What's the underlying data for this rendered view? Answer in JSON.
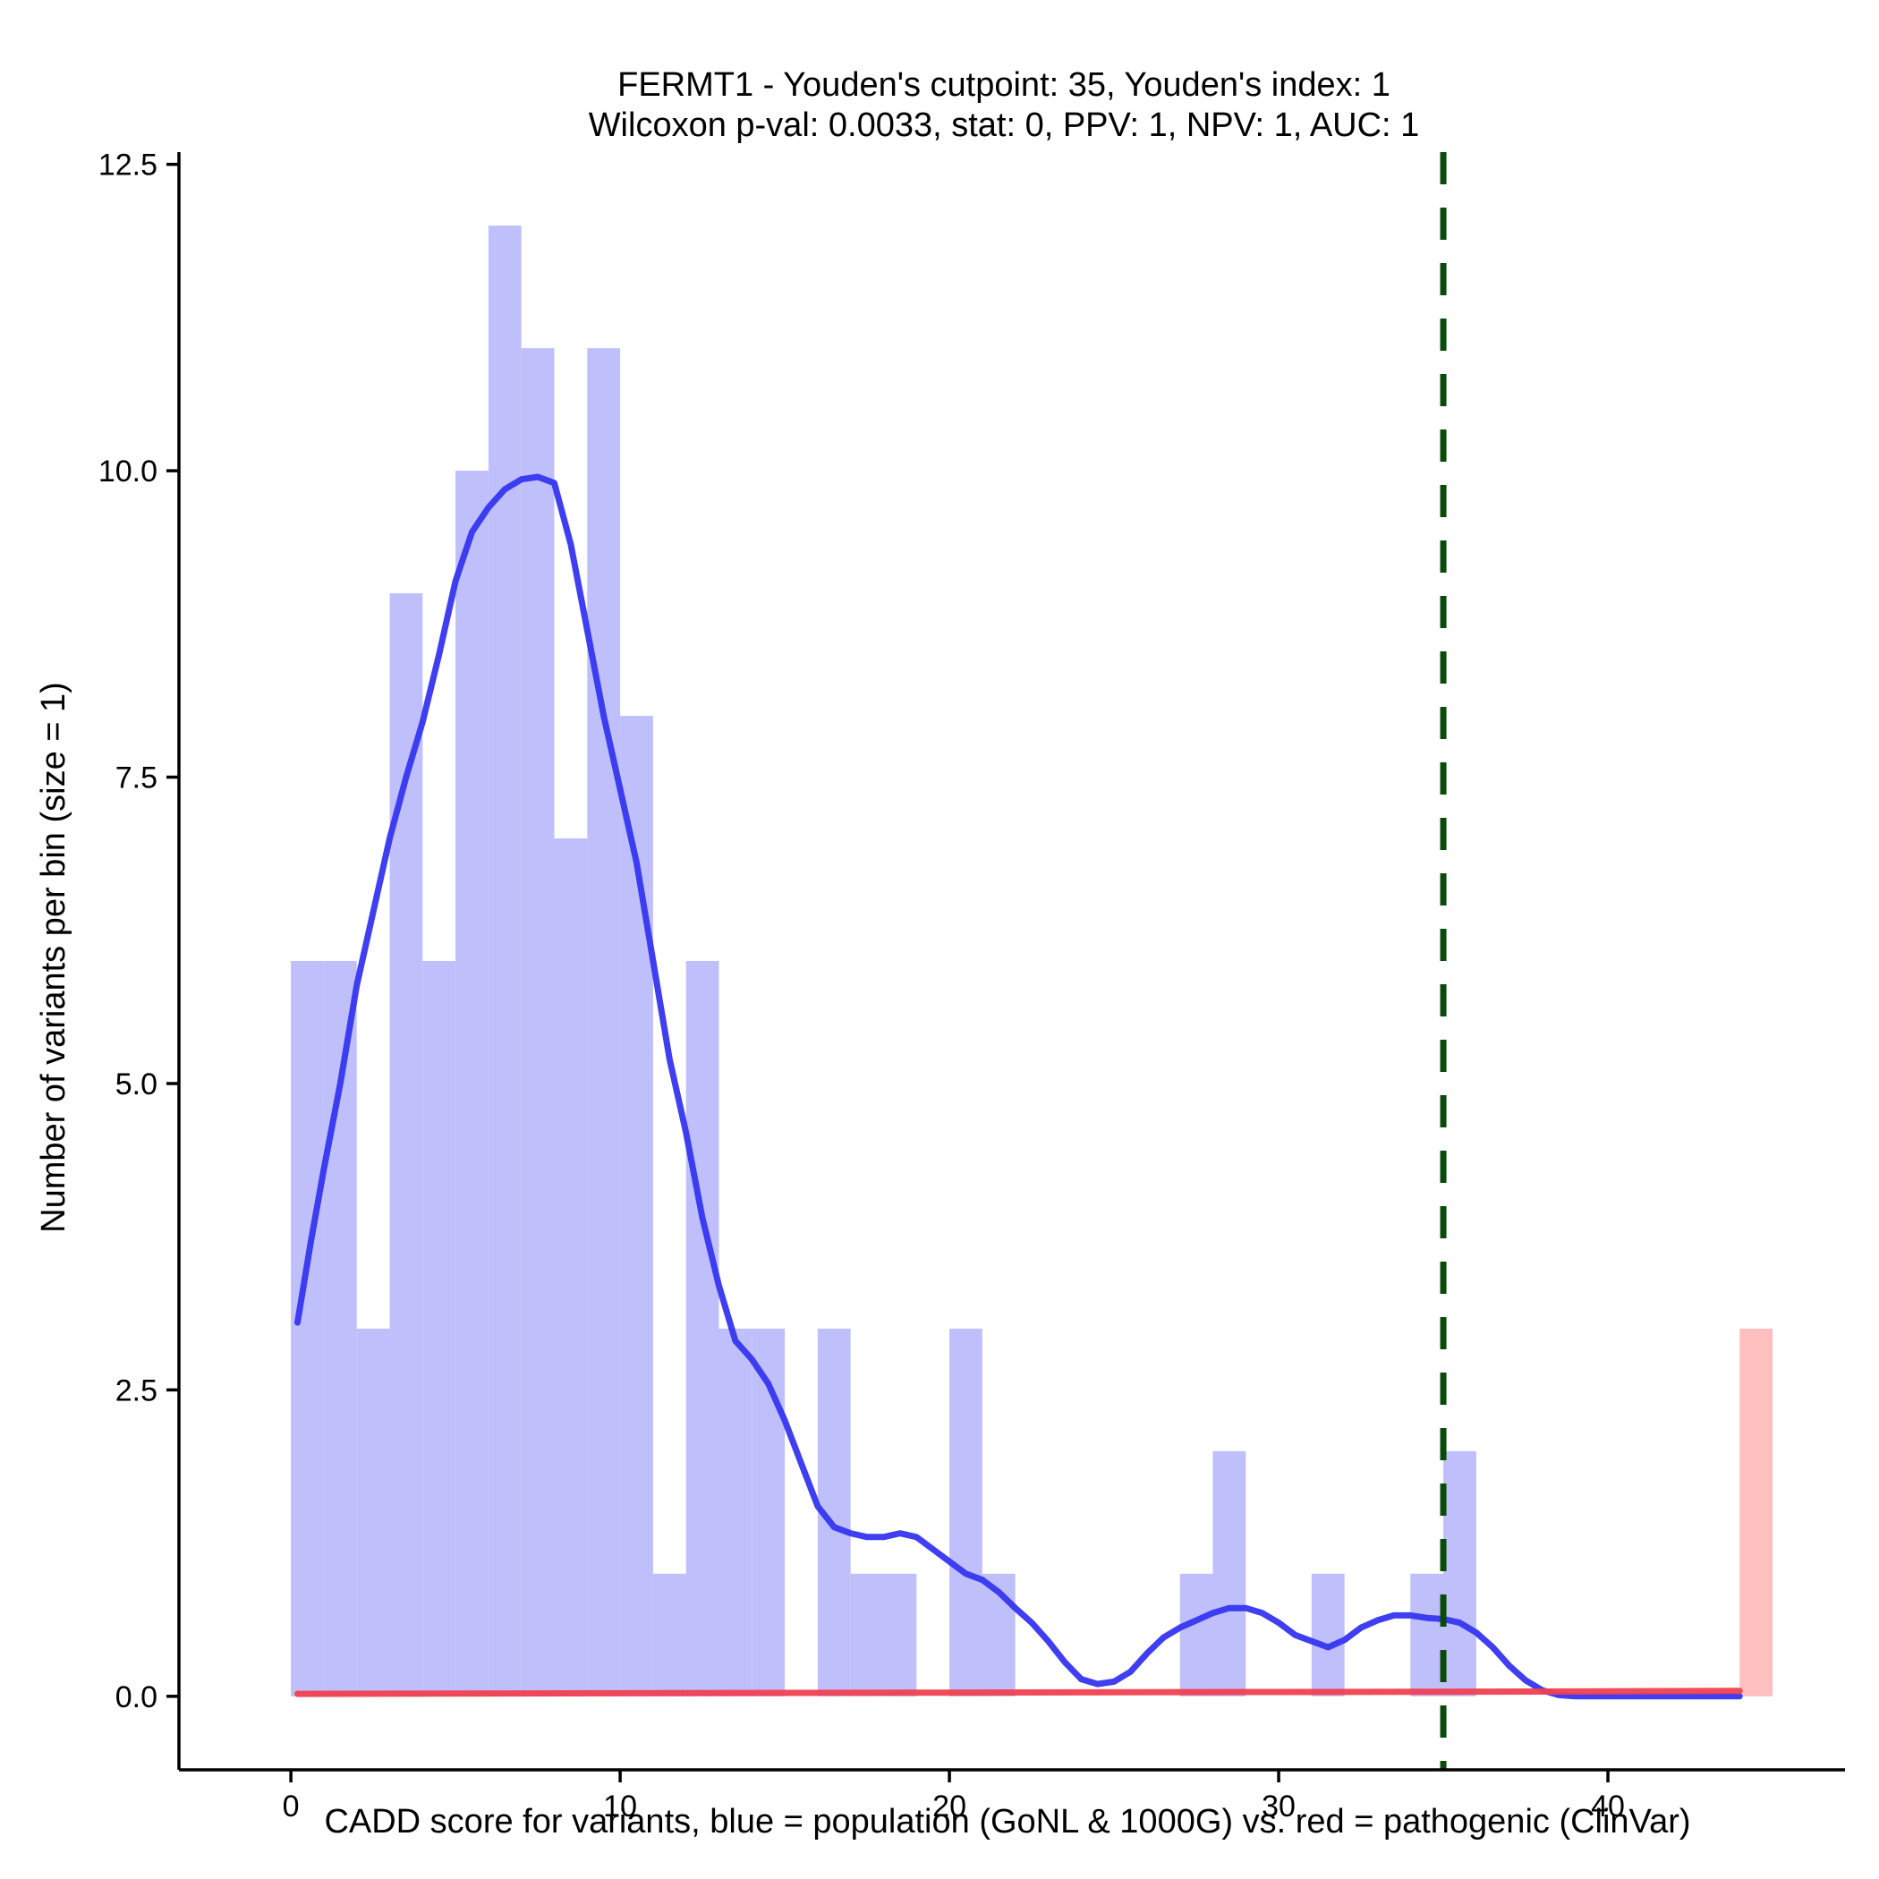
{
  "chart_data": {
    "type": "bar",
    "title_line1": "FERMT1 - Youden's cutpoint: 35, Youden's index: 1",
    "title_line2": "Wilcoxon p-val: 0.0033, stat: 0, PPV: 1, NPV: 1, AUC: 1",
    "xlabel": "CADD score for variants, blue = population (GoNL & 1000G) vs. red = pathogenic (ClinVar)",
    "ylabel": "Number of variants per bin (size = 1)",
    "xlim": [
      -3.4,
      47.2
    ],
    "ylim": [
      -0.6,
      12.6
    ],
    "x_ticks": [
      0,
      10,
      20,
      30,
      40
    ],
    "x_tick_labels": [
      "0",
      "10",
      "20",
      "30",
      "40"
    ],
    "y_ticks": [
      0,
      2.5,
      5,
      7.5,
      10,
      12.5
    ],
    "y_tick_labels": [
      "0.0",
      "2.5",
      "5.0",
      "7.5",
      "10.0",
      "12.5"
    ],
    "bin_width": 1,
    "colors": {
      "population_bar": "#bfbffc",
      "pathogenic_bar": "#ffbfbf",
      "population_density": "#3535f0",
      "pathogenic_density": "#f04050",
      "cutpoint_line": "#0a4a0a"
    },
    "series": [
      {
        "name": "population",
        "bins": [
          {
            "x0": 0,
            "count": 6
          },
          {
            "x0": 1,
            "count": 6
          },
          {
            "x0": 2,
            "count": 3
          },
          {
            "x0": 3,
            "count": 9
          },
          {
            "x0": 4,
            "count": 6
          },
          {
            "x0": 5,
            "count": 10
          },
          {
            "x0": 6,
            "count": 12
          },
          {
            "x0": 7,
            "count": 11
          },
          {
            "x0": 8,
            "count": 7
          },
          {
            "x0": 9,
            "count": 11
          },
          {
            "x0": 10,
            "count": 8
          },
          {
            "x0": 11,
            "count": 1
          },
          {
            "x0": 12,
            "count": 6
          },
          {
            "x0": 13,
            "count": 3
          },
          {
            "x0": 14,
            "count": 3
          },
          {
            "x0": 16,
            "count": 3
          },
          {
            "x0": 17,
            "count": 1
          },
          {
            "x0": 18,
            "count": 1
          },
          {
            "x0": 20,
            "count": 3
          },
          {
            "x0": 21,
            "count": 1
          },
          {
            "x0": 27,
            "count": 1
          },
          {
            "x0": 28,
            "count": 2
          },
          {
            "x0": 31,
            "count": 1
          },
          {
            "x0": 34,
            "count": 1
          },
          {
            "x0": 35,
            "count": 2
          }
        ],
        "density_curve": [
          [
            0.2,
            3.05
          ],
          [
            0.6,
            3.7
          ],
          [
            1.0,
            4.3
          ],
          [
            1.5,
            5.0
          ],
          [
            2.0,
            5.8
          ],
          [
            2.5,
            6.4
          ],
          [
            3.0,
            7.0
          ],
          [
            3.5,
            7.5
          ],
          [
            4.0,
            7.95
          ],
          [
            4.5,
            8.5
          ],
          [
            5.0,
            9.1
          ],
          [
            5.5,
            9.5
          ],
          [
            6.0,
            9.7
          ],
          [
            6.5,
            9.85
          ],
          [
            7.0,
            9.93
          ],
          [
            7.5,
            9.95
          ],
          [
            8.0,
            9.9
          ],
          [
            8.5,
            9.4
          ],
          [
            9.0,
            8.7
          ],
          [
            9.5,
            8.0
          ],
          [
            10.0,
            7.4
          ],
          [
            10.5,
            6.8
          ],
          [
            11.0,
            6.0
          ],
          [
            11.5,
            5.2
          ],
          [
            12.0,
            4.6
          ],
          [
            12.5,
            3.9
          ],
          [
            13.0,
            3.35
          ],
          [
            13.5,
            2.9
          ],
          [
            14.0,
            2.75
          ],
          [
            14.5,
            2.55
          ],
          [
            15.0,
            2.25
          ],
          [
            15.5,
            1.9
          ],
          [
            16.0,
            1.55
          ],
          [
            16.5,
            1.38
          ],
          [
            17.0,
            1.33
          ],
          [
            17.5,
            1.3
          ],
          [
            18.0,
            1.3
          ],
          [
            18.5,
            1.33
          ],
          [
            19.0,
            1.3
          ],
          [
            19.5,
            1.2
          ],
          [
            20.0,
            1.1
          ],
          [
            20.5,
            1.0
          ],
          [
            21.0,
            0.95
          ],
          [
            21.5,
            0.85
          ],
          [
            22.0,
            0.72
          ],
          [
            22.5,
            0.6
          ],
          [
            23.0,
            0.45
          ],
          [
            23.5,
            0.28
          ],
          [
            24.0,
            0.14
          ],
          [
            24.5,
            0.1
          ],
          [
            25.0,
            0.12
          ],
          [
            25.5,
            0.2
          ],
          [
            26.0,
            0.35
          ],
          [
            26.5,
            0.48
          ],
          [
            27.0,
            0.56
          ],
          [
            27.5,
            0.62
          ],
          [
            28.0,
            0.68
          ],
          [
            28.5,
            0.72
          ],
          [
            29.0,
            0.72
          ],
          [
            29.5,
            0.68
          ],
          [
            30.0,
            0.6
          ],
          [
            30.5,
            0.5
          ],
          [
            31.0,
            0.45
          ],
          [
            31.5,
            0.4
          ],
          [
            32.0,
            0.46
          ],
          [
            32.5,
            0.56
          ],
          [
            33.0,
            0.62
          ],
          [
            33.5,
            0.66
          ],
          [
            34.0,
            0.66
          ],
          [
            34.5,
            0.64
          ],
          [
            35.0,
            0.63
          ],
          [
            35.5,
            0.6
          ],
          [
            36.0,
            0.52
          ],
          [
            36.5,
            0.4
          ],
          [
            37.0,
            0.25
          ],
          [
            37.5,
            0.13
          ],
          [
            38.0,
            0.05
          ],
          [
            38.5,
            0.01
          ],
          [
            39.0,
            0.0
          ],
          [
            40.0,
            0.0
          ],
          [
            42.0,
            0.0
          ],
          [
            44.0,
            0.0
          ]
        ]
      },
      {
        "name": "pathogenic",
        "bins": [
          {
            "x0": 44,
            "count": 3
          }
        ],
        "density_curve": [
          [
            0.2,
            0.02
          ],
          [
            10.0,
            0.025
          ],
          [
            20.0,
            0.03
          ],
          [
            30.0,
            0.035
          ],
          [
            40.0,
            0.04
          ],
          [
            44.0,
            0.045
          ]
        ]
      }
    ],
    "cutpoint": 35
  }
}
